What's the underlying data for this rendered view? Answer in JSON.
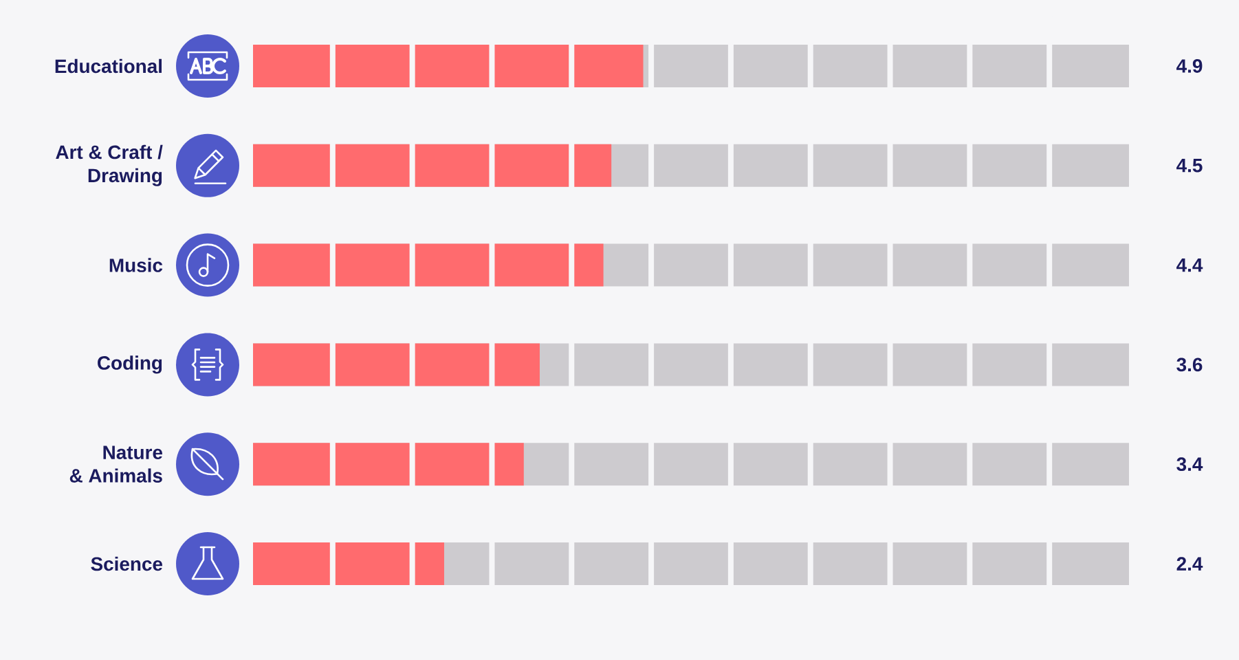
{
  "chart_data": {
    "type": "bar",
    "orientation": "horizontal",
    "categories": [
      "Educational",
      "Art & Craft /\nDrawing",
      "Music",
      "Coding",
      "Nature\n& Animals",
      "Science"
    ],
    "values": [
      4.9,
      4.5,
      4.4,
      3.6,
      3.4,
      2.4
    ],
    "color": "#ff6b6e",
    "xlim": [
      0,
      11
    ],
    "xticks": [
      {
        "value": 1,
        "label": null
      },
      {
        "value": 2,
        "label": null
      },
      {
        "value": 3,
        "label": null
      },
      {
        "value": 4,
        "label": null
      },
      {
        "value": 5,
        "label": null
      },
      {
        "value": 6,
        "label": null
      },
      {
        "value": 7,
        "label": null
      },
      {
        "value": 8,
        "label": null
      },
      {
        "value": 9,
        "label": null
      },
      {
        "value": 10,
        "label": null
      }
    ],
    "grid": "x",
    "tick_labels": "y",
    "data_labels": true
  }
}
